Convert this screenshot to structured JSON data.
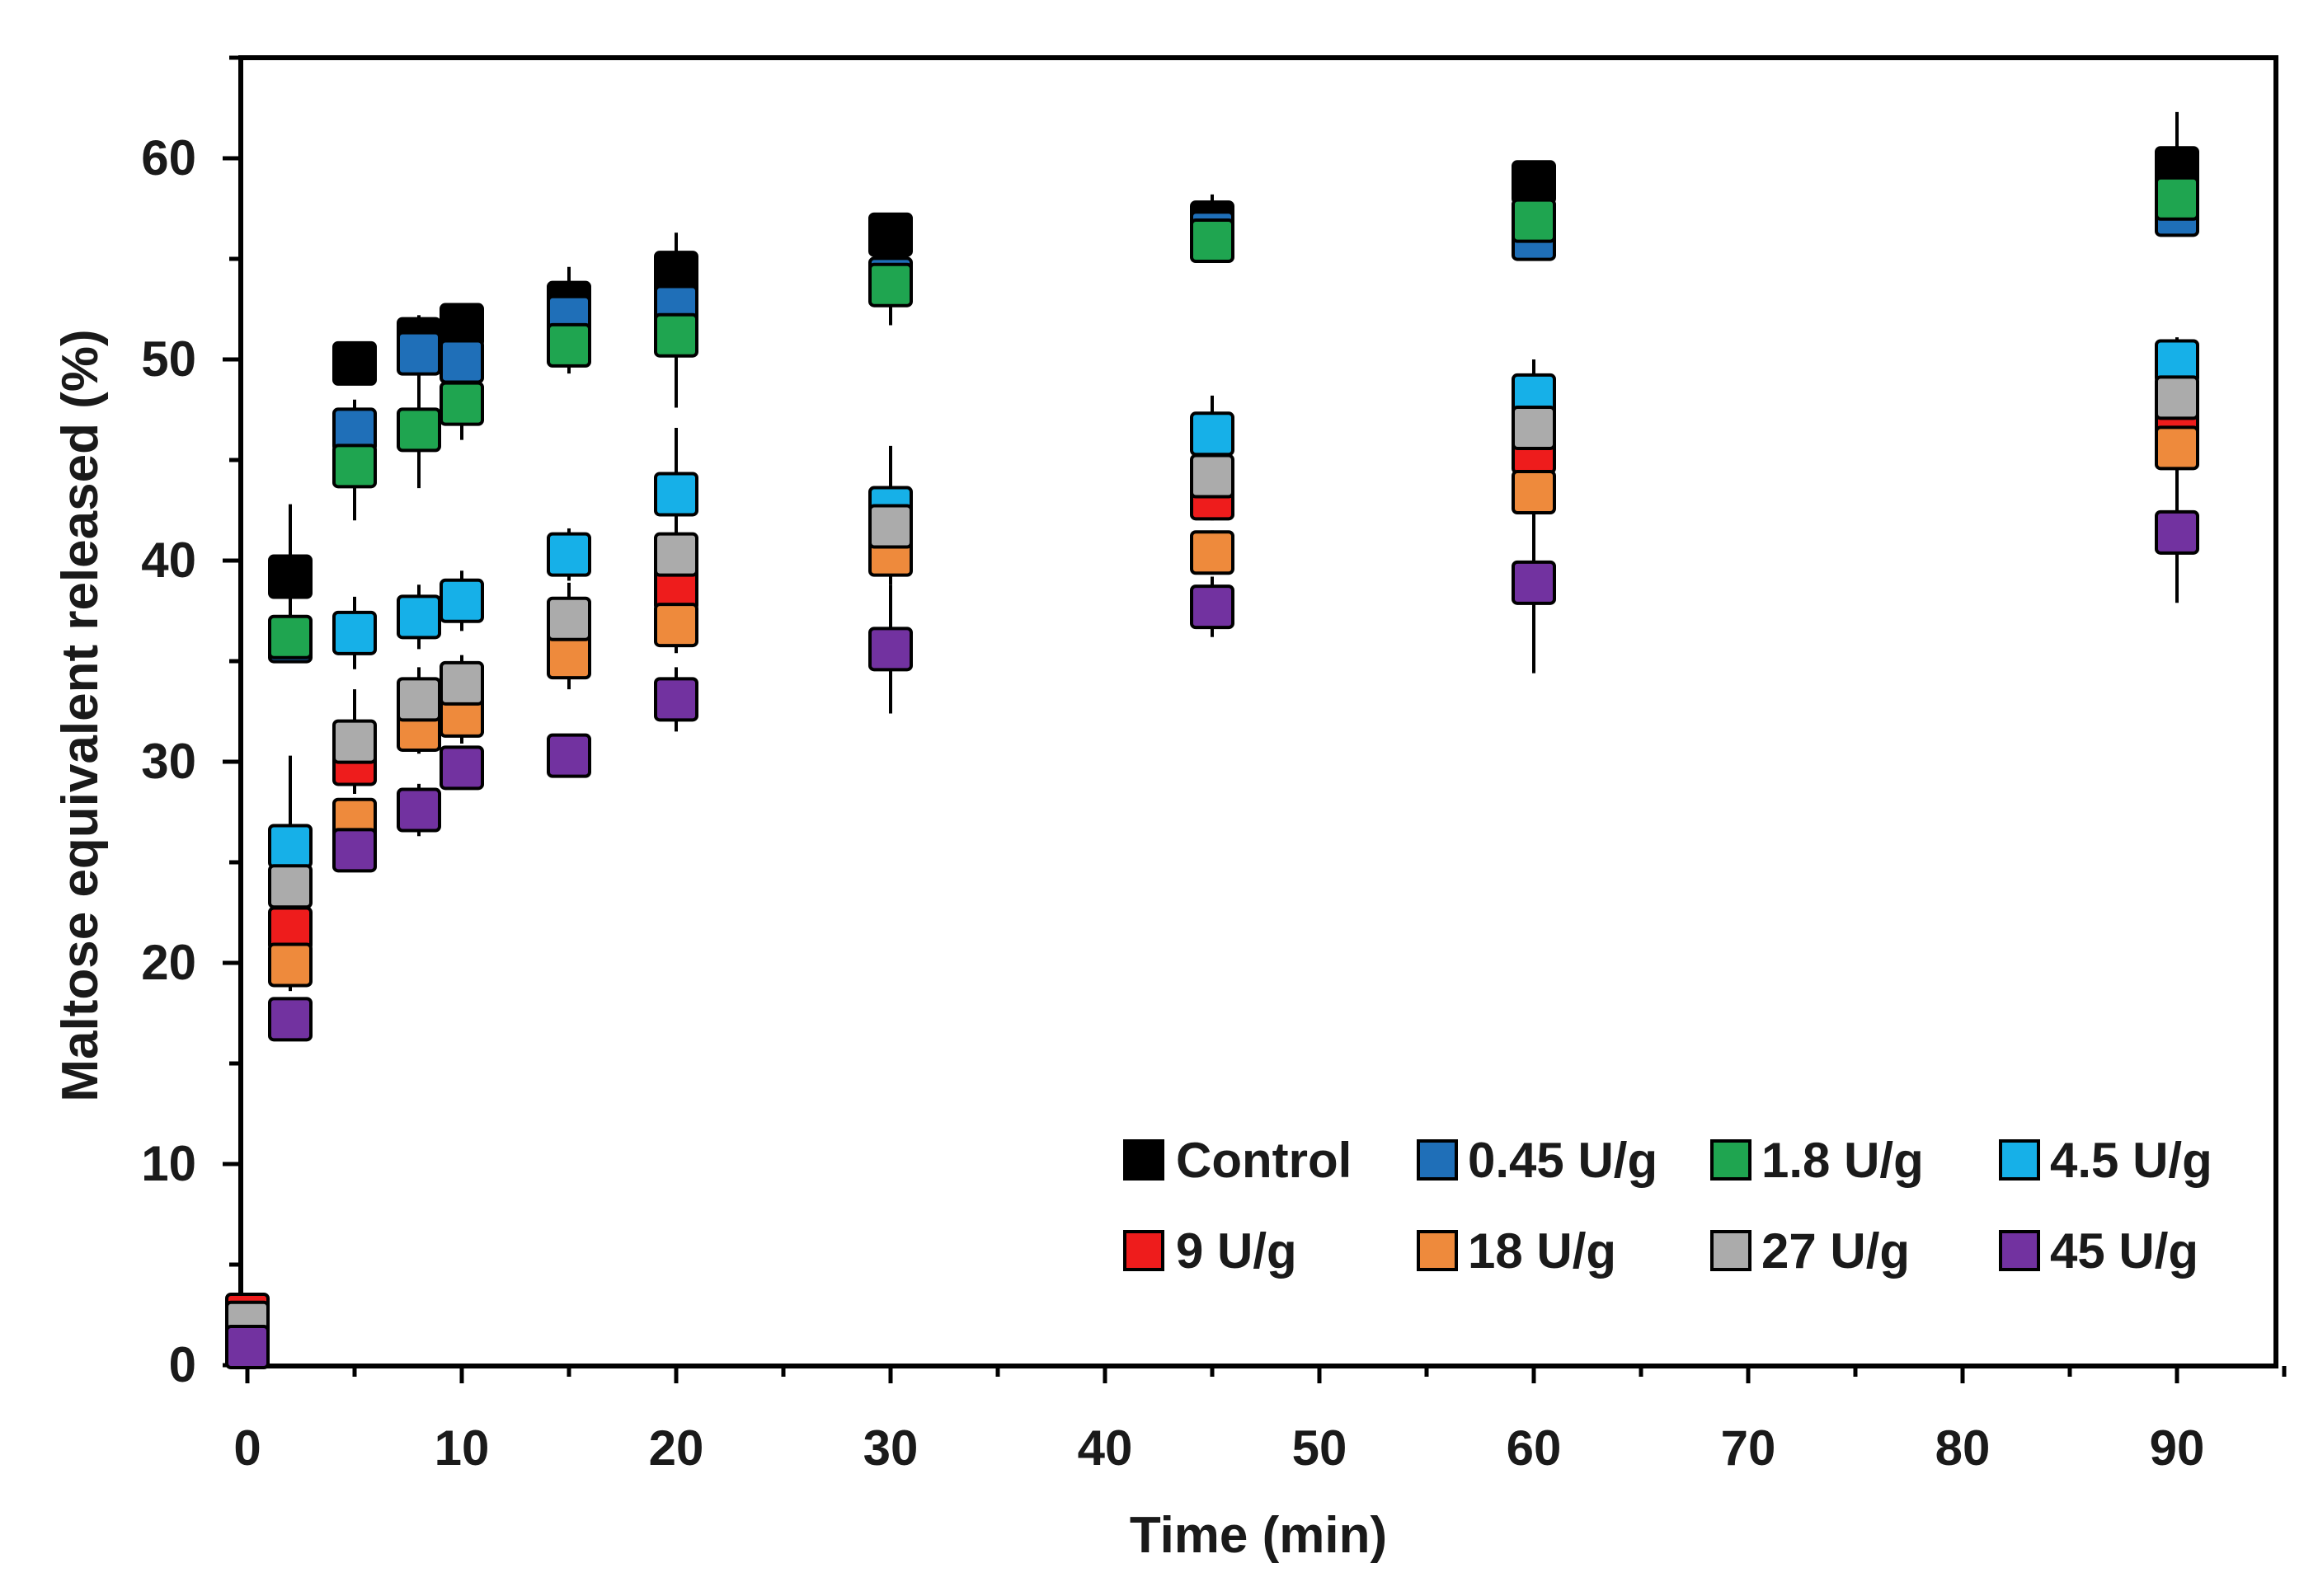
{
  "chart_data": {
    "type": "scatter",
    "title": "",
    "xlabel": "Time (min)",
    "ylabel": "Maltose equivalent released (%)",
    "xlim": [
      0,
      95
    ],
    "ylim": [
      0,
      65
    ],
    "x_ticks": [
      0,
      10,
      20,
      30,
      40,
      50,
      60,
      70,
      80,
      90
    ],
    "y_ticks": [
      0,
      10,
      20,
      30,
      40,
      50,
      60
    ],
    "x_tick_labels": [
      "0",
      "10",
      "20",
      "30",
      "40",
      "50",
      "60",
      "70",
      "80",
      "90"
    ],
    "y_tick_labels": [
      "0",
      "10",
      "20",
      "30",
      "40",
      "50",
      "60"
    ],
    "x_values": [
      0,
      2,
      5,
      8,
      10,
      15,
      20,
      30,
      45,
      60,
      90
    ],
    "legend_position": "bottom-right",
    "series": [
      {
        "name": "Control",
        "color": "#000000",
        "values": [
          2.4,
          39.2,
          49.8,
          51.0,
          51.7,
          52.8,
          54.3,
          56.2,
          56.8,
          58.8,
          59.5
        ],
        "errors": [
          0.3,
          3.6,
          0.4,
          1.2,
          1.0,
          1.8,
          2.0,
          1.0,
          1.4,
          0.6,
          2.8
        ]
      },
      {
        "name": "0.45 U/g",
        "color": "#1F6FB8",
        "values": [
          2.2,
          36.0,
          46.5,
          50.3,
          49.9,
          52.1,
          52.6,
          54.0,
          56.3,
          56.0,
          57.2
        ],
        "errors": [
          0.3,
          1.0,
          1.5,
          1.6,
          1.6,
          1.5,
          1.4,
          1.3,
          1.1,
          0.8,
          0.8
        ]
      },
      {
        "name": "1.8 U/g",
        "color": "#1FA550",
        "values": [
          2.0,
          36.2,
          44.7,
          46.5,
          47.8,
          50.7,
          51.2,
          53.7,
          55.9,
          56.9,
          58.0
        ],
        "errors": [
          0.3,
          1.0,
          2.7,
          2.9,
          1.8,
          1.4,
          3.6,
          2.0,
          1.0,
          1.5,
          1.2
        ]
      },
      {
        "name": "4.5 U/g",
        "color": "#16B0E8",
        "values": [
          1.8,
          25.8,
          36.4,
          37.2,
          38.0,
          40.3,
          43.3,
          42.6,
          46.3,
          48.2,
          49.9
        ],
        "errors": [
          0.3,
          4.5,
          1.8,
          1.6,
          1.5,
          1.3,
          3.3,
          3.1,
          1.9,
          1.8,
          1.2
        ]
      },
      {
        "name": "9 U/g",
        "color": "#EE1C1C",
        "values": [
          2.5,
          21.7,
          29.9,
          32.5,
          33.2,
          35.8,
          38.6,
          40.5,
          43.1,
          45.4,
          46.6
        ],
        "errors": [
          0.3,
          1.5,
          1.2,
          1.4,
          1.3,
          1.2,
          2.0,
          1.7,
          1.1,
          1.3,
          1.4
        ]
      },
      {
        "name": "18 U/g",
        "color": "#EE8A3C",
        "values": [
          1.6,
          19.9,
          27.1,
          31.6,
          32.3,
          35.2,
          36.8,
          40.3,
          40.4,
          43.4,
          45.6
        ],
        "errors": [
          0.3,
          1.3,
          1.1,
          1.2,
          1.4,
          1.6,
          1.4,
          1.1,
          1.1,
          1.0,
          1.2
        ]
      },
      {
        "name": "27 U/g",
        "color": "#ABABAB",
        "values": [
          2.1,
          23.8,
          31.0,
          33.1,
          33.9,
          37.1,
          40.3,
          41.7,
          44.2,
          46.6,
          48.1
        ],
        "errors": [
          0.3,
          1.2,
          2.6,
          1.6,
          1.4,
          1.8,
          1.8,
          1.8,
          1.7,
          1.6,
          1.4
        ]
      },
      {
        "name": "45 U/g",
        "color": "#7232A0",
        "values": [
          0.9,
          17.2,
          25.6,
          27.6,
          29.7,
          30.3,
          33.1,
          35.6,
          37.7,
          38.9,
          41.4
        ],
        "errors": [
          0.3,
          0.9,
          1.0,
          1.3,
          1.0,
          1.0,
          1.6,
          3.2,
          1.5,
          4.5,
          3.5
        ]
      }
    ]
  }
}
